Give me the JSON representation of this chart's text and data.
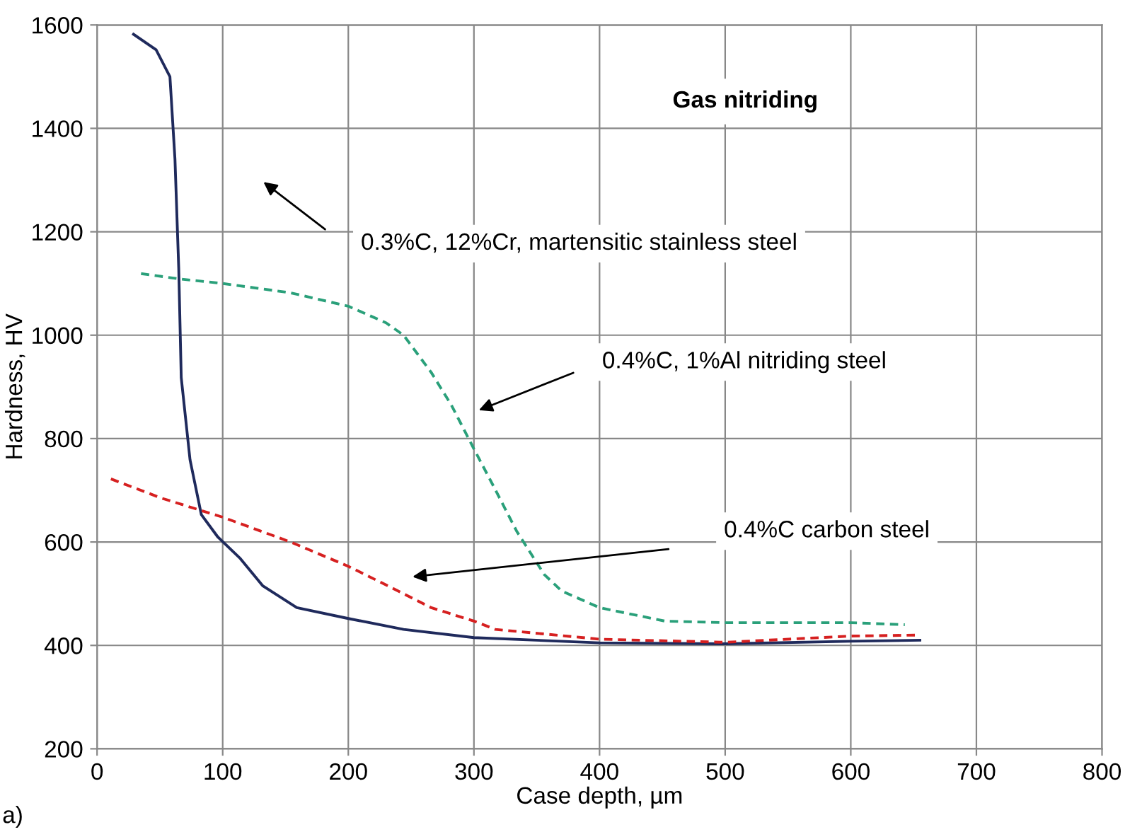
{
  "chart_data": {
    "type": "line",
    "title": "Gas nitriding",
    "xlabel": "Case depth, µm",
    "ylabel": "Hardness, HV",
    "xlim": [
      0,
      800
    ],
    "xticks": [
      0,
      100,
      200,
      300,
      400,
      500,
      600,
      700,
      800
    ],
    "ylim": [
      200,
      1600
    ],
    "yticks": [
      200,
      400,
      600,
      800,
      1000,
      1200,
      1400,
      1600
    ],
    "grid": true,
    "legend": false,
    "marker": "none",
    "series": [
      {
        "color": "#1f2a5c",
        "line_style": "solid",
        "x": [
          29,
          47,
          58,
          62,
          65,
          67,
          74,
          83,
          96,
          114,
          132,
          159,
          200,
          244,
          300,
          400,
          500,
          600,
          655
        ],
        "values": [
          1582,
          1552,
          1500,
          1341,
          1130,
          918,
          759,
          653,
          610,
          568,
          515,
          473,
          452,
          431,
          415,
          405,
          403,
          408,
          410
        ]
      },
      {
        "color": "#2aa07a",
        "line_style": "dashed",
        "x": [
          35,
          65,
          100,
          154,
          200,
          230,
          244,
          266,
          282,
          300,
          316,
          334,
          356,
          370,
          400,
          452,
          500,
          600,
          643
        ],
        "values": [
          1119,
          1109,
          1100,
          1082,
          1056,
          1024,
          1000,
          928,
          865,
          780,
          706,
          621,
          537,
          505,
          473,
          447,
          444,
          444,
          440
        ]
      },
      {
        "color": "#d62020",
        "line_style": "dashed",
        "x": [
          11,
          51,
          100,
          154,
          200,
          235,
          266,
          300,
          317,
          400,
          500,
          600,
          655
        ],
        "values": [
          722,
          685,
          648,
          600,
          553,
          511,
          473,
          447,
          431,
          412,
          406,
          418,
          420
        ]
      }
    ],
    "annotations": [
      "0.3%C, 12%Cr, martensitic stainless steel",
      "0.4%C, 1%Al nitriding steel",
      "0.4%C carbon steel",
      "a)"
    ]
  }
}
